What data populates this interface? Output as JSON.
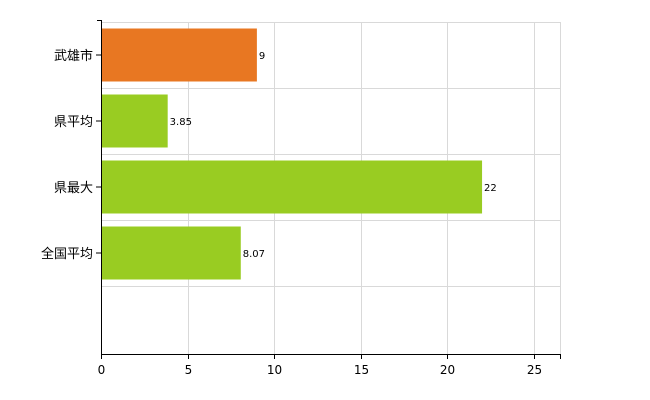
{
  "chart_data": {
    "type": "bar",
    "orientation": "horizontal",
    "title": "",
    "xlabel": "",
    "ylabel": "",
    "categories": [
      "武雄市",
      "県平均",
      "県最大",
      "全国平均"
    ],
    "values": [
      9,
      3.85,
      22,
      8.07
    ],
    "data_labels": [
      "9",
      "3.85",
      "22",
      "8.07"
    ],
    "colors": [
      "#e87722",
      "#99cc22",
      "#99cc22",
      "#99cc22"
    ],
    "xlim": [
      0,
      26.5
    ],
    "xticks": [
      0,
      5,
      10,
      15,
      20,
      25
    ],
    "xtick_labels": [
      "0",
      "5",
      "10",
      "15",
      "20",
      "25"
    ],
    "grid": true,
    "legend": "none"
  }
}
